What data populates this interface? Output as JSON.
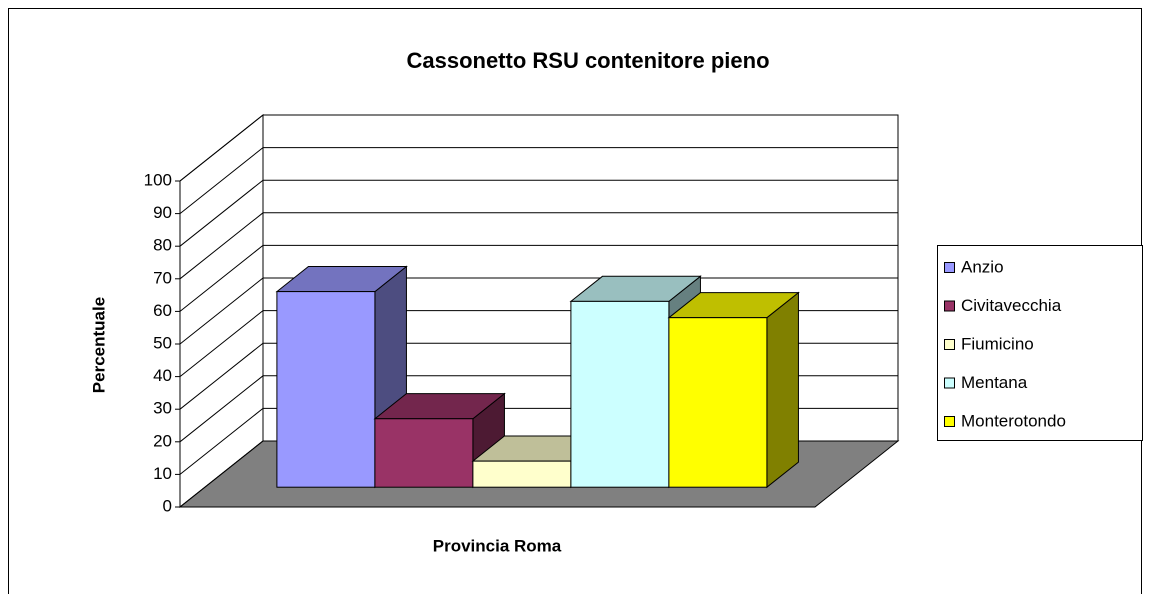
{
  "chart_data": {
    "type": "bar3d",
    "title": "Cassonetto RSU contenitore pieno",
    "x_label": "Provincia Roma",
    "y_label": "Percentuale",
    "series": [
      {
        "name": "Anzio",
        "color": "#9999ff",
        "values": [
          60
        ]
      },
      {
        "name": "Civitavecchia",
        "color": "#993366",
        "values": [
          21
        ]
      },
      {
        "name": "Fiumicino",
        "color": "#ffffcc",
        "values": [
          8
        ]
      },
      {
        "name": "Mentana",
        "color": "#ccffff",
        "values": [
          57
        ]
      },
      {
        "name": "Monterotondo",
        "color": "#ffff00",
        "values": [
          52
        ]
      }
    ],
    "ylim": [
      0,
      100
    ],
    "yticks": [
      0,
      10,
      20,
      30,
      40,
      50,
      60,
      70,
      80,
      90,
      100
    ],
    "grid": true,
    "legend": "right"
  }
}
